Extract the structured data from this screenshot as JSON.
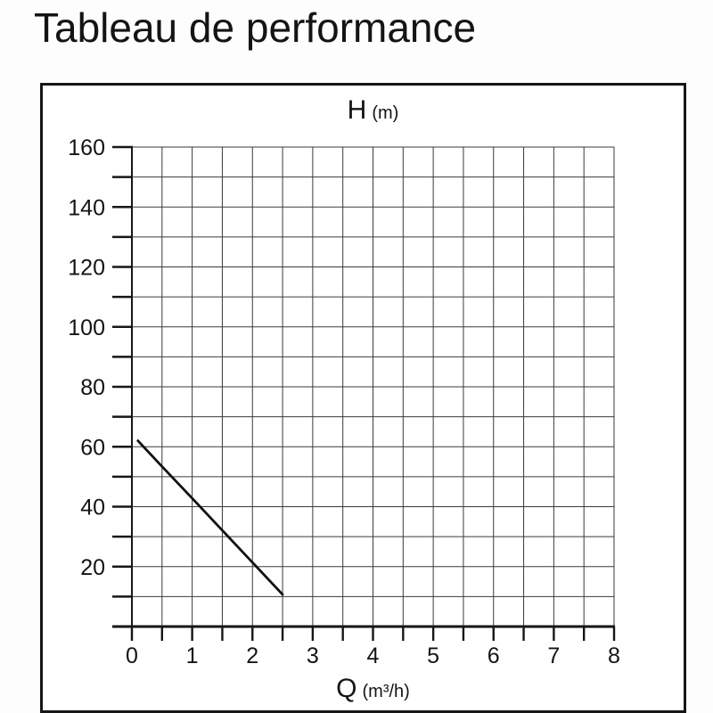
{
  "chart_data": {
    "type": "line",
    "title": "Tableau de performance",
    "y_axis_title": "H",
    "y_axis_unit": "(m)",
    "x_axis_title": "Q",
    "x_axis_unit": "(m³/h)",
    "xlim": [
      0,
      8
    ],
    "ylim": [
      0,
      160
    ],
    "x_major_ticks": [
      0,
      1,
      2,
      3,
      4,
      5,
      6,
      7,
      8
    ],
    "x_minor_step": 0.5,
    "y_major_ticks": [
      20,
      40,
      60,
      80,
      100,
      120,
      140,
      160
    ],
    "y_minor_step": 10,
    "grid": true,
    "legend": false,
    "series": [
      {
        "name": "pump-performance-curve",
        "points": [
          [
            0.1,
            62
          ],
          [
            0.5,
            53.4
          ],
          [
            1.0,
            42.8
          ],
          [
            1.5,
            32.1
          ],
          [
            2.0,
            21.4
          ],
          [
            2.5,
            10.7
          ]
        ],
        "color": "#101010"
      }
    ],
    "colors": {
      "grid": "#3a3a3a",
      "axis": "#161616",
      "text": "#141414",
      "background": "#ffffff"
    }
  }
}
